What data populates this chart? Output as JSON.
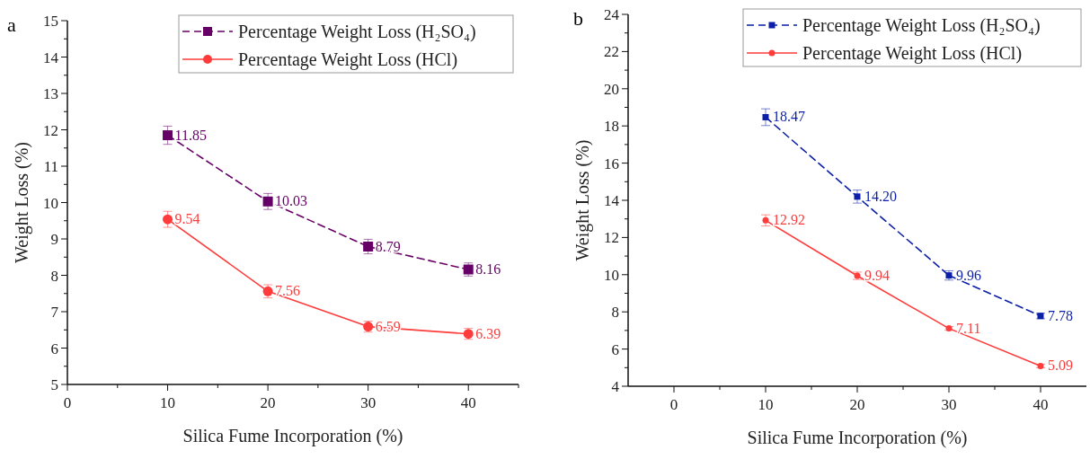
{
  "chart_data": [
    {
      "type": "line",
      "title": "a",
      "xlabel": "Silica Fume Incorporation (%)",
      "ylabel": "Weight Loss (%)",
      "x": [
        10,
        20,
        30,
        40
      ],
      "xlim": [
        0,
        45
      ],
      "xticks": [
        0,
        {
          "value": 5,
          "label": null
        },
        10,
        {
          "value": 15,
          "label": null
        },
        20,
        {
          "value": 25,
          "label": null
        },
        30,
        {
          "value": 35,
          "label": null
        },
        40,
        {
          "value": 45,
          "label": null
        }
      ],
      "ylim": [
        5,
        15
      ],
      "yticks": [
        5,
        {
          "value": 5.5,
          "label": null
        },
        6,
        {
          "value": 6.5,
          "label": null
        },
        7,
        {
          "value": 7.5,
          "label": null
        },
        8,
        {
          "value": 8.5,
          "label": null
        },
        9,
        {
          "value": 9.5,
          "label": null
        },
        10,
        {
          "value": 10.5,
          "label": null
        },
        11,
        {
          "value": 11.5,
          "label": null
        },
        12,
        {
          "value": 12.5,
          "label": null
        },
        13,
        {
          "value": 13.5,
          "label": null
        },
        14,
        {
          "value": 14.5,
          "label": null
        },
        15
      ],
      "legend": "top right",
      "grid": false,
      "series": [
        {
          "name": "Percentage Weight Loss (H₂SO₄)",
          "color": "#660066",
          "values": [
            11.85,
            10.03,
            8.79,
            8.16
          ],
          "errors": [
            0.25,
            0.22,
            0.2,
            0.18
          ],
          "value_labels": [
            "11.85",
            "10.03",
            "8.79",
            "8.16"
          ],
          "marker": "square",
          "line_style": "dashed"
        },
        {
          "name": "Percentage Weight Loss (HCl)",
          "color": "#ff3b3b",
          "values": [
            9.54,
            7.56,
            6.59,
            6.39
          ],
          "errors": [
            0.22,
            0.18,
            0.15,
            0.15
          ],
          "value_labels": [
            "9.54",
            "7.56",
            "6.59",
            "6.39"
          ],
          "marker": "circle",
          "line_style": "solid"
        }
      ]
    },
    {
      "type": "line",
      "title": "b",
      "xlabel": "Silica Fume Incorporation (%)",
      "ylabel": "Weight Loss (%)",
      "x": [
        10,
        20,
        30,
        40
      ],
      "xlim": [
        -5,
        45
      ],
      "xticks": [
        0,
        {
          "value": 5,
          "label": null
        },
        10,
        {
          "value": 15,
          "label": null
        },
        20,
        {
          "value": 25,
          "label": null
        },
        30,
        {
          "value": 35,
          "label": null
        },
        40
      ],
      "ylim": [
        4,
        24
      ],
      "yticks": [
        4,
        {
          "value": 5,
          "label": null
        },
        6,
        {
          "value": 7,
          "label": null
        },
        8,
        {
          "value": 9,
          "label": null
        },
        10,
        {
          "value": 11,
          "label": null
        },
        12,
        {
          "value": 13,
          "label": null
        },
        14,
        {
          "value": 15,
          "label": null
        },
        16,
        {
          "value": 17,
          "label": null
        },
        18,
        {
          "value": 19,
          "label": null
        },
        20,
        {
          "value": 21,
          "label": null
        },
        22,
        {
          "value": 23,
          "label": null
        },
        24
      ],
      "legend": "top right",
      "grid": false,
      "series": [
        {
          "name": "Percentage Weight Loss (H₂SO₄)",
          "color": "#0b1fa8",
          "values": [
            18.47,
            14.2,
            9.96,
            7.78
          ],
          "errors": [
            0.45,
            0.35,
            0.25,
            0.15
          ],
          "value_labels": [
            "18.47",
            "14.20",
            "9.96",
            "7.78"
          ],
          "marker": "square",
          "line_style": "dashed"
        },
        {
          "name": "Percentage Weight Loss (HCl)",
          "color": "#ff3b3b",
          "values": [
            12.92,
            9.94,
            7.11,
            5.09
          ],
          "errors": [
            0.3,
            0.2,
            0.1,
            0.1
          ],
          "value_labels": [
            "12.92",
            "9.94",
            "7.11",
            "5.09"
          ],
          "marker": "circle",
          "line_style": "solid"
        }
      ]
    }
  ]
}
